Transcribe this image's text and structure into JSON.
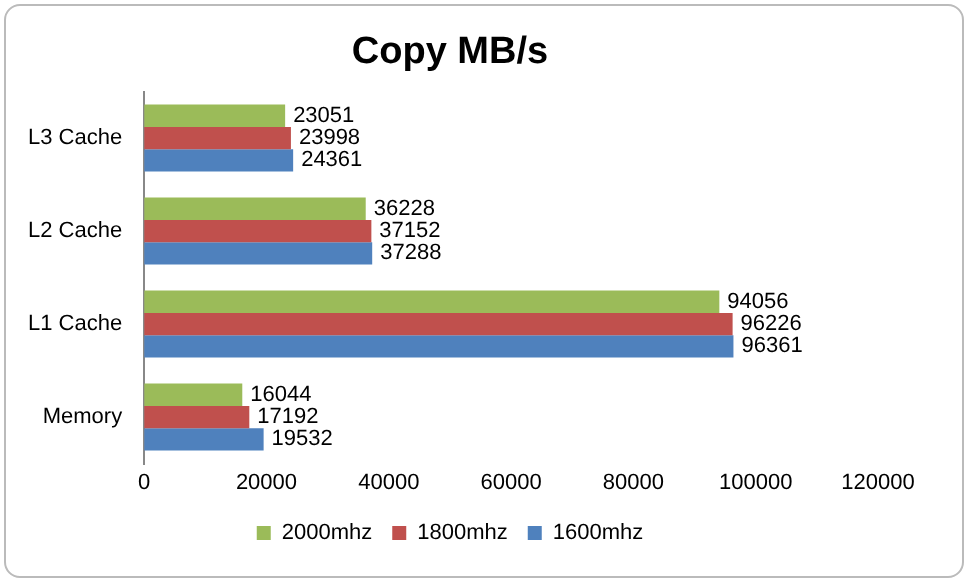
{
  "chart_data": {
    "type": "bar",
    "orientation": "horizontal",
    "title": "Copy MB/s",
    "categories": [
      "L3 Cache",
      "L2 Cache",
      "L1 Cache",
      "Memory"
    ],
    "series": [
      {
        "name": "2000mhz",
        "color": "#9bbb59",
        "values": [
          23051,
          36228,
          94056,
          16044
        ]
      },
      {
        "name": "1800mhz",
        "color": "#c0504d",
        "values": [
          23998,
          37152,
          96226,
          17192
        ]
      },
      {
        "name": "1600mhz",
        "color": "#4f81bd",
        "values": [
          24361,
          37288,
          96361,
          19532
        ]
      }
    ],
    "xlim": [
      0,
      120000
    ],
    "xticks": [
      0,
      20000,
      40000,
      60000,
      80000,
      100000,
      120000
    ],
    "grid": false,
    "legend": "bottom",
    "data_labels": true
  }
}
